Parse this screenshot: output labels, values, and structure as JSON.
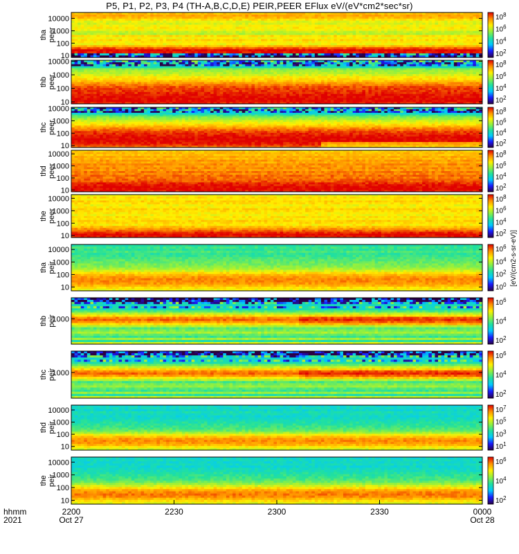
{
  "title": "P5, P1, P2, P3, P4 (TH-A,B,C,D,E) PEIR,PEER EFlux eV/(eV*cm2*sec*sr)",
  "colorbar_title": "[eV/(cm2-s-sr-eV)]",
  "colormap": [
    "#2a0045",
    "#1a1aff",
    "#00c8ff",
    "#20e0a0",
    "#90f040",
    "#fff000",
    "#ff9000",
    "#e00000"
  ],
  "x_axis": {
    "row_labels": [
      "hhmm",
      "2021"
    ],
    "ticks": [
      {
        "top": "2200",
        "bottom": "Oct 27"
      },
      {
        "top": "2230",
        "bottom": ""
      },
      {
        "top": "2300",
        "bottom": ""
      },
      {
        "top": "2330",
        "bottom": ""
      },
      {
        "top": "0000",
        "bottom": "Oct 28"
      }
    ]
  },
  "chart_data": [
    {
      "type": "heatmap",
      "probe": "tha",
      "ylabel": [
        "tha",
        "peer"
      ],
      "yscale": "log",
      "ylim": [
        7,
        30000
      ],
      "yticks": [
        "10000",
        "1000",
        "100",
        "10"
      ],
      "cb_ticks": [
        "10^8",
        "10^6",
        "10^4",
        "10^2"
      ],
      "profile": [
        0.78,
        0.82,
        0.8,
        0.74,
        0.68,
        0.66,
        0.7,
        0.72,
        0.7,
        0.64,
        0.62,
        0.74,
        0.7,
        0.75,
        0.72,
        0.7,
        0.8,
        0.92,
        1.0,
        0.98,
        0.2,
        0.08
      ]
    },
    {
      "type": "heatmap",
      "probe": "thb",
      "ylabel": [
        "thb",
        "peer"
      ],
      "yscale": "log",
      "ylim": [
        7,
        12000
      ],
      "yticks": [
        "10000",
        "1000",
        "100",
        "10"
      ],
      "cb_ticks": [
        "10^8",
        "10^6",
        "10^4",
        "10^2"
      ],
      "profile": [
        0.33,
        0.24,
        0.22,
        0.4,
        0.55,
        0.6,
        0.62,
        0.66,
        0.72,
        0.74,
        0.78,
        0.84,
        0.88,
        0.92,
        0.94,
        0.95,
        0.96,
        0.98,
        0.99,
        1.0,
        1.0,
        0.98
      ]
    },
    {
      "type": "heatmap",
      "probe": "thc",
      "ylabel": [
        "thc",
        "peer"
      ],
      "yscale": "log",
      "ylim": [
        7,
        12000
      ],
      "yticks": [
        "10000",
        "1000",
        "100",
        "10"
      ],
      "cb_ticks": [
        "10^8",
        "10^6",
        "10^4",
        "10^2"
      ],
      "profile": [
        0.28,
        0.24,
        0.22,
        0.36,
        0.48,
        0.56,
        0.6,
        0.66,
        0.7,
        0.74,
        0.8,
        0.86,
        0.9,
        0.94,
        0.96,
        0.98,
        1.0,
        1.0,
        1.0,
        0.98,
        0.96,
        0.9
      ]
    },
    {
      "type": "heatmap",
      "probe": "thd",
      "ylabel": [
        "thd",
        "peer"
      ],
      "yscale": "log",
      "ylim": [
        7,
        20000
      ],
      "yticks": [
        "10000",
        "1000",
        "100",
        "10"
      ],
      "cb_ticks": [
        "10^8",
        "10^6",
        "10^4",
        "10^2"
      ],
      "profile": [
        0.76,
        0.8,
        0.78,
        0.82,
        0.8,
        0.84,
        0.82,
        0.86,
        0.84,
        0.86,
        0.84,
        0.88,
        0.86,
        0.9,
        0.88,
        0.9,
        0.92,
        0.96,
        0.98,
        1.0,
        1.0,
        0.98
      ]
    },
    {
      "type": "heatmap",
      "probe": "the",
      "ylabel": [
        "the",
        "peer"
      ],
      "yscale": "log",
      "ylim": [
        7,
        20000
      ],
      "yticks": [
        "10000",
        "1000",
        "100",
        "10"
      ],
      "cb_ticks": [
        "10^8",
        "10^6",
        "10^4",
        "10^2"
      ],
      "profile": [
        0.7,
        0.74,
        0.72,
        0.76,
        0.74,
        0.7,
        0.72,
        0.76,
        0.74,
        0.72,
        0.7,
        0.74,
        0.72,
        0.76,
        0.74,
        0.72,
        0.78,
        0.84,
        0.9,
        0.96,
        1.0,
        0.98
      ]
    },
    {
      "type": "heatmap",
      "probe": "tha",
      "ylabel": [
        "tha",
        "peir"
      ],
      "yscale": "log",
      "ylim": [
        5,
        25000
      ],
      "yticks": [
        "10000",
        "1000",
        "100",
        "10"
      ],
      "cb_ticks": [
        "10^6",
        "10^4",
        "10^2",
        "10^0"
      ],
      "profile": [
        0.42,
        0.46,
        0.44,
        0.48,
        0.44,
        0.46,
        0.48,
        0.5,
        0.52,
        0.54,
        0.56,
        0.6,
        0.66,
        0.74,
        0.8,
        0.84,
        0.86,
        0.86,
        0.84,
        0.8,
        0.74,
        0.7
      ]
    },
    {
      "type": "heatmap",
      "probe": "thb",
      "ylabel": [
        "thb",
        "peir"
      ],
      "yscale": "log",
      "ylim": [
        50,
        12000
      ],
      "yticks": [
        "1000"
      ],
      "cb_ticks": [
        "10^6",
        "10^4",
        "10^2"
      ],
      "profile": [
        0.05,
        0.06,
        0.3,
        0.38,
        0.34,
        0.4,
        0.5,
        0.62,
        0.74,
        0.86,
        0.9,
        0.84,
        0.74,
        0.62,
        0.5,
        0.54,
        0.6,
        0.52,
        0.46,
        0.6,
        0.42,
        0.66
      ]
    },
    {
      "type": "heatmap",
      "probe": "thc",
      "ylabel": [
        "thc",
        "peir"
      ],
      "yscale": "log",
      "ylim": [
        50,
        12000
      ],
      "yticks": [
        "1000"
      ],
      "cb_ticks": [
        "10^6",
        "10^4",
        "10^2"
      ],
      "profile": [
        0.06,
        0.08,
        0.3,
        0.36,
        0.34,
        0.42,
        0.52,
        0.64,
        0.76,
        0.86,
        0.9,
        0.84,
        0.72,
        0.62,
        0.48,
        0.54,
        0.58,
        0.5,
        0.46,
        0.58,
        0.42,
        0.62
      ]
    },
    {
      "type": "heatmap",
      "probe": "thd",
      "ylabel": [
        "thd",
        "peir"
      ],
      "yscale": "log",
      "ylim": [
        5,
        25000
      ],
      "yticks": [
        "10000",
        "1000",
        "100",
        "10"
      ],
      "cb_ticks": [
        "10^7",
        "10^5",
        "10^3",
        "10^1"
      ],
      "profile": [
        0.36,
        0.38,
        0.36,
        0.4,
        0.38,
        0.36,
        0.38,
        0.4,
        0.42,
        0.44,
        0.46,
        0.48,
        0.52,
        0.6,
        0.7,
        0.78,
        0.84,
        0.86,
        0.84,
        0.8,
        0.72,
        0.66
      ]
    },
    {
      "type": "heatmap",
      "probe": "the",
      "ylabel": [
        "the",
        "peir"
      ],
      "yscale": "log",
      "ylim": [
        5,
        25000
      ],
      "yticks": [
        "10000",
        "1000",
        "100",
        "10"
      ],
      "cb_ticks": [
        "10^6",
        "10^4",
        "10^2"
      ],
      "profile": [
        0.36,
        0.38,
        0.36,
        0.38,
        0.36,
        0.38,
        0.4,
        0.42,
        0.44,
        0.46,
        0.48,
        0.52,
        0.58,
        0.66,
        0.74,
        0.82,
        0.86,
        0.88,
        0.86,
        0.8,
        0.74,
        0.68
      ]
    }
  ]
}
